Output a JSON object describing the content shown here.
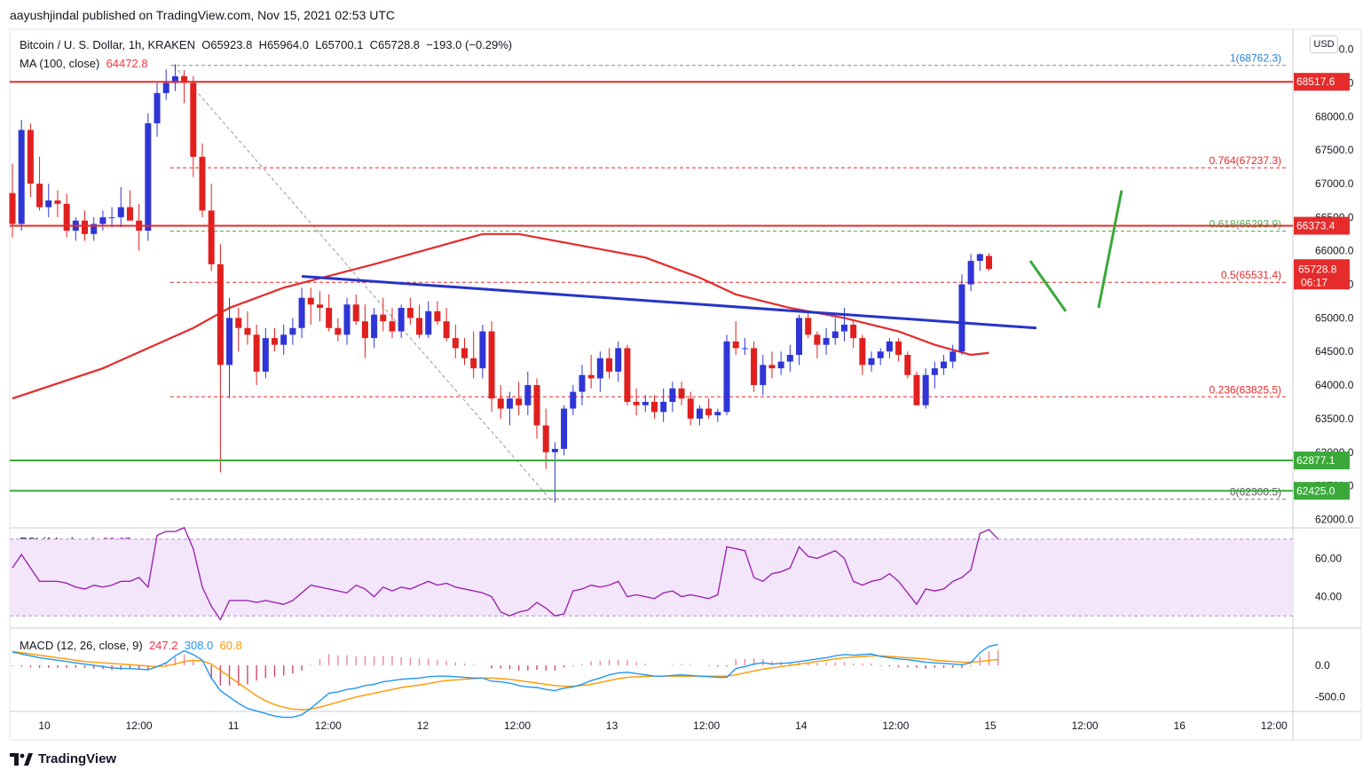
{
  "header": {
    "published": "aayushjindal published on TradingView.com, Nov 15, 2021 02:53 UTC"
  },
  "legend": {
    "symbol": "Bitcoin / U. S. Dollar, 1h, KRAKEN",
    "o_label": "O",
    "o": "65923.8",
    "h_label": "H",
    "h": "65964.0",
    "l_label": "L",
    "l": "65700.1",
    "c_label": "C",
    "c": "65728.8",
    "change": "−193.0 (−0.29%)",
    "ma_label": "MA (100, close)",
    "ma_value": "64472.8",
    "rsi_label": "RSI (14, close)",
    "rsi_value": "66.65",
    "macd_label": "MACD (12, 26, close, 9)",
    "macd_v1": "247.2",
    "macd_v2": "308.0",
    "macd_v3": "60.8"
  },
  "currency_button": "USD",
  "footer": {
    "brand": "TradingView"
  },
  "colors": {
    "up": "#2f35d6",
    "down": "#e0201e",
    "ma": "#e52b2b",
    "trend": "#2734c8",
    "green": "#3aa93a",
    "rsi_line": "#9c27b0",
    "rsi_band": "#f3e6fb",
    "macd": "#2196f3",
    "signal": "#ff9800"
  },
  "chart_data": {
    "type": "candlestick",
    "title": "Bitcoin / U. S. Dollar, 1h, KRAKEN",
    "y_range": [
      61900,
      69300
    ],
    "y_ticks": [
      "62000.0",
      "62500.0",
      "63000.0",
      "63500.0",
      "64000.0",
      "64500.0",
      "65000.0",
      "65500.0",
      "66000.0",
      "66500.0",
      "67000.0",
      "67500.0",
      "68000.0",
      "68500.0",
      "69000.0"
    ],
    "x_labels": [
      "10",
      "12:00",
      "11",
      "12:00",
      "12",
      "12:00",
      "13",
      "12:00",
      "14",
      "12:00",
      "15",
      "12:00",
      "16",
      "12:00"
    ],
    "candles": [
      [
        66860,
        67300,
        66200,
        66400
      ],
      [
        66400,
        67950,
        66300,
        67800
      ],
      [
        67800,
        67900,
        66800,
        67000
      ],
      [
        67000,
        67400,
        66600,
        66650
      ],
      [
        66650,
        67000,
        66500,
        66750
      ],
      [
        66750,
        66900,
        66500,
        66700
      ],
      [
        66700,
        66850,
        66200,
        66300
      ],
      [
        66300,
        66500,
        66150,
        66450
      ],
      [
        66450,
        66600,
        66150,
        66250
      ],
      [
        66250,
        66500,
        66150,
        66400
      ],
      [
        66400,
        66600,
        66300,
        66500
      ],
      [
        66500,
        66650,
        66350,
        66500
      ],
      [
        66500,
        66950,
        66350,
        66650
      ],
      [
        66650,
        66900,
        66450,
        66450
      ],
      [
        66450,
        66700,
        66000,
        66300
      ],
      [
        66300,
        68050,
        66150,
        67900
      ],
      [
        67900,
        68500,
        67700,
        68350
      ],
      [
        68350,
        68700,
        68250,
        68500
      ],
      [
        68500,
        68780,
        68380,
        68600
      ],
      [
        68600,
        68690,
        68200,
        68500
      ],
      [
        68500,
        68600,
        67100,
        67400
      ],
      [
        67400,
        67600,
        66500,
        66600
      ],
      [
        66600,
        67000,
        65700,
        65800
      ],
      [
        65800,
        66100,
        62700,
        64300
      ],
      [
        64300,
        65300,
        63800,
        65000
      ],
      [
        65000,
        65150,
        64500,
        64850
      ],
      [
        64850,
        65100,
        64600,
        64750
      ],
      [
        64750,
        64900,
        64000,
        64200
      ],
      [
        64200,
        64850,
        64100,
        64700
      ],
      [
        64700,
        64850,
        64500,
        64600
      ],
      [
        64600,
        64900,
        64450,
        64750
      ],
      [
        64750,
        65000,
        64600,
        64850
      ],
      [
        64850,
        65450,
        64700,
        65300
      ],
      [
        65300,
        65450,
        64900,
        65200
      ],
      [
        65200,
        65400,
        64950,
        65150
      ],
      [
        65150,
        65350,
        64800,
        64850
      ],
      [
        64850,
        65000,
        64650,
        64750
      ],
      [
        64750,
        65300,
        64600,
        65200
      ],
      [
        65200,
        65350,
        64900,
        64950
      ],
      [
        64950,
        65200,
        64400,
        64700
      ],
      [
        64700,
        65150,
        64550,
        65050
      ],
      [
        65050,
        65300,
        64800,
        64950
      ],
      [
        64950,
        65150,
        64700,
        64800
      ],
      [
        64800,
        65200,
        64700,
        65150
      ],
      [
        65150,
        65300,
        64900,
        65000
      ],
      [
        65000,
        65200,
        64700,
        64750
      ],
      [
        64750,
        65250,
        64700,
        65100
      ],
      [
        65100,
        65250,
        64900,
        64950
      ],
      [
        64950,
        65150,
        64650,
        64700
      ],
      [
        64700,
        64900,
        64400,
        64550
      ],
      [
        64550,
        64700,
        64300,
        64400
      ],
      [
        64400,
        64800,
        64100,
        64250
      ],
      [
        64250,
        64900,
        64100,
        64800
      ],
      [
        64800,
        64950,
        63600,
        63800
      ],
      [
        63800,
        64000,
        63500,
        63650
      ],
      [
        63650,
        63900,
        63400,
        63800
      ],
      [
        63800,
        64050,
        63550,
        63700
      ],
      [
        63700,
        64200,
        63550,
        64000
      ],
      [
        64000,
        64100,
        63200,
        63400
      ],
      [
        63400,
        63650,
        62750,
        63000
      ],
      [
        63000,
        63150,
        62250,
        63050
      ],
      [
        63050,
        63700,
        62950,
        63650
      ],
      [
        63650,
        64000,
        63550,
        63900
      ],
      [
        63900,
        64300,
        63700,
        64150
      ],
      [
        64150,
        64450,
        63950,
        64100
      ],
      [
        64100,
        64500,
        63900,
        64400
      ],
      [
        64400,
        64550,
        64100,
        64200
      ],
      [
        64200,
        64650,
        64050,
        64550
      ],
      [
        64550,
        64600,
        63700,
        63750
      ],
      [
        63750,
        63950,
        63550,
        63700
      ],
      [
        63700,
        63850,
        63600,
        63750
      ],
      [
        63750,
        63850,
        63500,
        63600
      ],
      [
        63600,
        63950,
        63450,
        63750
      ],
      [
        63750,
        64050,
        63600,
        63950
      ],
      [
        63950,
        64050,
        63700,
        63800
      ],
      [
        63800,
        63900,
        63400,
        63500
      ],
      [
        63500,
        63700,
        63400,
        63650
      ],
      [
        63650,
        63800,
        63500,
        63550
      ],
      [
        63550,
        63650,
        63450,
        63600
      ],
      [
        63600,
        64750,
        63550,
        64650
      ],
      [
        64650,
        64950,
        64450,
        64550
      ],
      [
        64550,
        64700,
        64450,
        64550
      ],
      [
        64550,
        64650,
        63900,
        64000
      ],
      [
        64000,
        64450,
        63850,
        64300
      ],
      [
        64300,
        64500,
        64100,
        64250
      ],
      [
        64250,
        64500,
        64150,
        64350
      ],
      [
        64350,
        64600,
        64200,
        64450
      ],
      [
        64450,
        65050,
        64300,
        65000
      ],
      [
        65000,
        65100,
        64700,
        64750
      ],
      [
        64750,
        64800,
        64400,
        64600
      ],
      [
        64600,
        64850,
        64450,
        64700
      ],
      [
        64700,
        65000,
        64600,
        64800
      ],
      [
        64800,
        65150,
        64650,
        64900
      ],
      [
        64900,
        64950,
        64550,
        64700
      ],
      [
        64700,
        64750,
        64150,
        64300
      ],
      [
        64300,
        64500,
        64200,
        64400
      ],
      [
        64400,
        64550,
        64300,
        64500
      ],
      [
        64500,
        64700,
        64400,
        64650
      ],
      [
        64650,
        64700,
        64350,
        64450
      ],
      [
        64450,
        64500,
        64100,
        64150
      ],
      [
        64150,
        64200,
        63700,
        63700
      ],
      [
        63700,
        64250,
        63650,
        64150
      ],
      [
        64150,
        64350,
        63950,
        64250
      ],
      [
        64250,
        64450,
        64150,
        64350
      ],
      [
        64350,
        64600,
        64250,
        64500
      ],
      [
        64500,
        65650,
        64450,
        65500
      ],
      [
        65500,
        65950,
        65400,
        65850
      ],
      [
        65850,
        65964,
        65700,
        65950
      ],
      [
        65923.8,
        65964,
        65700.1,
        65728.8
      ]
    ],
    "ma100": [
      [
        0,
        63800
      ],
      [
        10,
        64250
      ],
      [
        20,
        64850
      ],
      [
        24,
        65150
      ],
      [
        30,
        65450
      ],
      [
        40,
        65800
      ],
      [
        48,
        66100
      ],
      [
        52,
        66250
      ],
      [
        56,
        66250
      ],
      [
        62,
        66100
      ],
      [
        70,
        65900
      ],
      [
        76,
        65600
      ],
      [
        80,
        65350
      ],
      [
        86,
        65150
      ],
      [
        92,
        65000
      ],
      [
        98,
        64800
      ],
      [
        102,
        64600
      ],
      [
        106,
        64450
      ],
      [
        108,
        64480
      ]
    ],
    "resistance_levels": [
      {
        "value": 68517.6,
        "label": "68517.6"
      },
      {
        "value": 66373.4,
        "label": "66373.4"
      }
    ],
    "support_levels": [
      {
        "value": 62877.1,
        "label": "62877.1"
      },
      {
        "value": 62425.0,
        "label": "62425.0"
      }
    ],
    "last_price": {
      "value": 65728.8,
      "label": "65728.8",
      "countdown": "06:17"
    },
    "fibonacci": [
      {
        "level": "1",
        "value": 68762.3,
        "label": "1(68762.3)"
      },
      {
        "level": "0.764",
        "value": 67237.3,
        "label": "0.764(67237.3)"
      },
      {
        "level": "0.618",
        "value": 66293.9,
        "label": "0.618(66293.9)"
      },
      {
        "level": "0.5",
        "value": 65531.4,
        "label": "0.5(65531.4)"
      },
      {
        "level": "0.236",
        "value": 63825.5,
        "label": "0.236(63825.5)"
      },
      {
        "level": "0",
        "value": 62300.5,
        "label": "0(62300.5)"
      }
    ],
    "rsi": {
      "range": [
        25,
        75
      ],
      "ticks": [
        "60.00",
        "40.00"
      ],
      "band": [
        30,
        70
      ],
      "values": [
        55,
        62,
        55,
        48,
        48,
        48,
        47,
        45,
        44,
        46,
        45,
        46,
        48,
        48,
        50,
        45,
        72,
        74,
        74,
        76,
        65,
        45,
        35,
        28,
        38,
        38,
        38,
        37,
        38,
        37,
        36,
        38,
        42,
        46,
        45,
        44,
        43,
        42,
        46,
        44,
        40,
        45,
        43,
        45,
        44,
        46,
        48,
        46,
        47,
        45,
        44,
        43,
        42,
        40,
        32,
        30,
        32,
        33,
        37,
        34,
        30,
        31,
        43,
        44,
        46,
        45,
        46,
        48,
        40,
        41,
        40,
        39,
        42,
        43,
        40,
        41,
        40,
        39,
        41,
        66,
        65,
        64,
        50,
        48,
        52,
        53,
        55,
        66,
        61,
        60,
        62,
        64,
        60,
        48,
        46,
        48,
        49,
        52,
        48,
        42,
        36,
        44,
        43,
        44,
        48,
        50,
        54,
        73,
        75,
        70
      ]
    },
    "macd": {
      "range": [
        -700,
        560
      ],
      "ticks": [
        "0.0",
        "-500.0"
      ],
      "macd_line": [
        210,
        180,
        150,
        120,
        100,
        80,
        60,
        40,
        20,
        0,
        -20,
        -40,
        -50,
        -50,
        -60,
        -70,
        -20,
        40,
        150,
        230,
        170,
        80,
        -200,
        -400,
        -500,
        -600,
        -680,
        -720,
        -760,
        -800,
        -820,
        -820,
        -780,
        -680,
        -560,
        -440,
        -420,
        -380,
        -360,
        -320,
        -300,
        -260,
        -240,
        -220,
        -210,
        -200,
        -180,
        -170,
        -170,
        -180,
        -190,
        -200,
        -200,
        -250,
        -260,
        -280,
        -320,
        -340,
        -350,
        -380,
        -400,
        -360,
        -340,
        -300,
        -240,
        -200,
        -150,
        -120,
        -110,
        -130,
        -150,
        -170,
        -170,
        -160,
        -150,
        -160,
        -170,
        -180,
        -190,
        -190,
        -50,
        -20,
        20,
        40,
        20,
        30,
        40,
        60,
        80,
        100,
        120,
        150,
        170,
        160,
        170,
        180,
        140,
        120,
        100,
        90,
        70,
        50,
        40,
        30,
        20,
        10,
        40,
        200,
        300,
        330
      ],
      "signal_line": [
        220,
        200,
        180,
        160,
        140,
        120,
        100,
        80,
        60,
        50,
        40,
        30,
        20,
        10,
        0,
        -10,
        -20,
        -10,
        20,
        60,
        80,
        70,
        20,
        -80,
        -180,
        -280,
        -380,
        -480,
        -560,
        -620,
        -660,
        -690,
        -700,
        -690,
        -660,
        -620,
        -580,
        -540,
        -500,
        -470,
        -440,
        -410,
        -380,
        -350,
        -330,
        -310,
        -290,
        -260,
        -240,
        -230,
        -220,
        -210,
        -200,
        -200,
        -210,
        -220,
        -240,
        -260,
        -280,
        -300,
        -320,
        -330,
        -330,
        -320,
        -300,
        -270,
        -240,
        -210,
        -190,
        -180,
        -175,
        -170,
        -170,
        -170,
        -170,
        -170,
        -170,
        -170,
        -170,
        -170,
        -150,
        -120,
        -90,
        -60,
        -40,
        -20,
        0,
        20,
        40,
        60,
        80,
        100,
        120,
        130,
        140,
        150,
        150,
        140,
        130,
        120,
        110,
        100,
        80,
        70,
        60,
        50,
        50,
        60,
        80,
        90
      ],
      "histogram": [
        -10,
        -20,
        -30,
        -40,
        -40,
        -40,
        -40,
        -40,
        -40,
        -50,
        -60,
        -70,
        -70,
        -60,
        -60,
        -60,
        0,
        50,
        130,
        170,
        90,
        10,
        -220,
        -320,
        -320,
        -320,
        -300,
        -240,
        -200,
        -180,
        -160,
        -130,
        -80,
        10,
        100,
        180,
        160,
        160,
        140,
        150,
        140,
        150,
        140,
        130,
        120,
        110,
        110,
        90,
        70,
        50,
        30,
        10,
        0,
        -50,
        -50,
        -60,
        -80,
        -80,
        -70,
        -80,
        -80,
        -30,
        -10,
        20,
        60,
        70,
        90,
        90,
        80,
        50,
        25,
        0,
        0,
        10,
        20,
        10,
        0,
        -10,
        -20,
        -20,
        100,
        100,
        110,
        100,
        60,
        50,
        40,
        40,
        40,
        40,
        40,
        50,
        50,
        30,
        30,
        30,
        -10,
        -20,
        -30,
        -30,
        -40,
        -50,
        -40,
        -40,
        -40,
        -40,
        -10,
        140,
        220,
        240
      ]
    }
  }
}
